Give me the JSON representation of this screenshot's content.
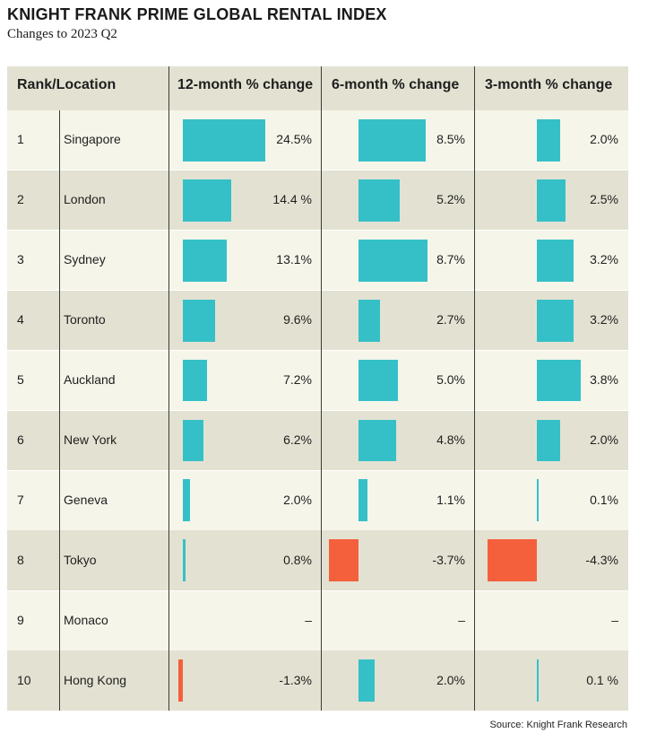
{
  "header": {
    "title": "KNIGHT FRANK PRIME GLOBAL RENTAL INDEX",
    "subtitle": "Changes to 2023 Q2",
    "source": "Source: Knight Frank Research"
  },
  "colors": {
    "positive": "#35c0c8",
    "negative": "#f4603c"
  },
  "chart_data": {
    "type": "table",
    "title": "KNIGHT FRANK PRIME GLOBAL RENTAL INDEX",
    "subtitle": "Changes to 2023 Q2",
    "columns": [
      "Rank/Location",
      "12-month % change",
      "6-month % change",
      "3-month % change"
    ],
    "rows": [
      {
        "rank": "1",
        "location": "Singapore",
        "m12": 24.5,
        "m12_label": "24.5%",
        "m6": 8.5,
        "m6_label": "8.5%",
        "m3": 2.0,
        "m3_label": "2.0%"
      },
      {
        "rank": "2",
        "location": "London",
        "m12": 14.4,
        "m12_label": "14.4 %",
        "m6": 5.2,
        "m6_label": "5.2%",
        "m3": 2.5,
        "m3_label": "2.5%"
      },
      {
        "rank": "3",
        "location": "Sydney",
        "m12": 13.1,
        "m12_label": "13.1%",
        "m6": 8.7,
        "m6_label": "8.7%",
        "m3": 3.2,
        "m3_label": "3.2%"
      },
      {
        "rank": "4",
        "location": "Toronto",
        "m12": 9.6,
        "m12_label": "9.6%",
        "m6": 2.7,
        "m6_label": "2.7%",
        "m3": 3.2,
        "m3_label": "3.2%"
      },
      {
        "rank": "5",
        "location": "Auckland",
        "m12": 7.2,
        "m12_label": "7.2%",
        "m6": 5.0,
        "m6_label": "5.0%",
        "m3": 3.8,
        "m3_label": "3.8%"
      },
      {
        "rank": "6",
        "location": "New York",
        "m12": 6.2,
        "m12_label": "6.2%",
        "m6": 4.8,
        "m6_label": "4.8%",
        "m3": 2.0,
        "m3_label": "2.0%"
      },
      {
        "rank": "7",
        "location": "Geneva",
        "m12": 2.0,
        "m12_label": "2.0%",
        "m6": 1.1,
        "m6_label": "1.1%",
        "m3": 0.1,
        "m3_label": "0.1%"
      },
      {
        "rank": "8",
        "location": "Tokyo",
        "m12": 0.8,
        "m12_label": "0.8%",
        "m6": -3.7,
        "m6_label": "-3.7%",
        "m3": -4.3,
        "m3_label": "-4.3%"
      },
      {
        "rank": "9",
        "location": "Monaco",
        "m12": null,
        "m12_label": "–",
        "m6": null,
        "m6_label": "–",
        "m3": null,
        "m3_label": "–"
      },
      {
        "rank": "10",
        "location": "Hong Kong",
        "m12": -1.3,
        "m12_label": "-1.3%",
        "m6": 2.0,
        "m6_label": "2.0%",
        "m3": 0.1,
        "m3_label": "0.1 %"
      }
    ]
  }
}
